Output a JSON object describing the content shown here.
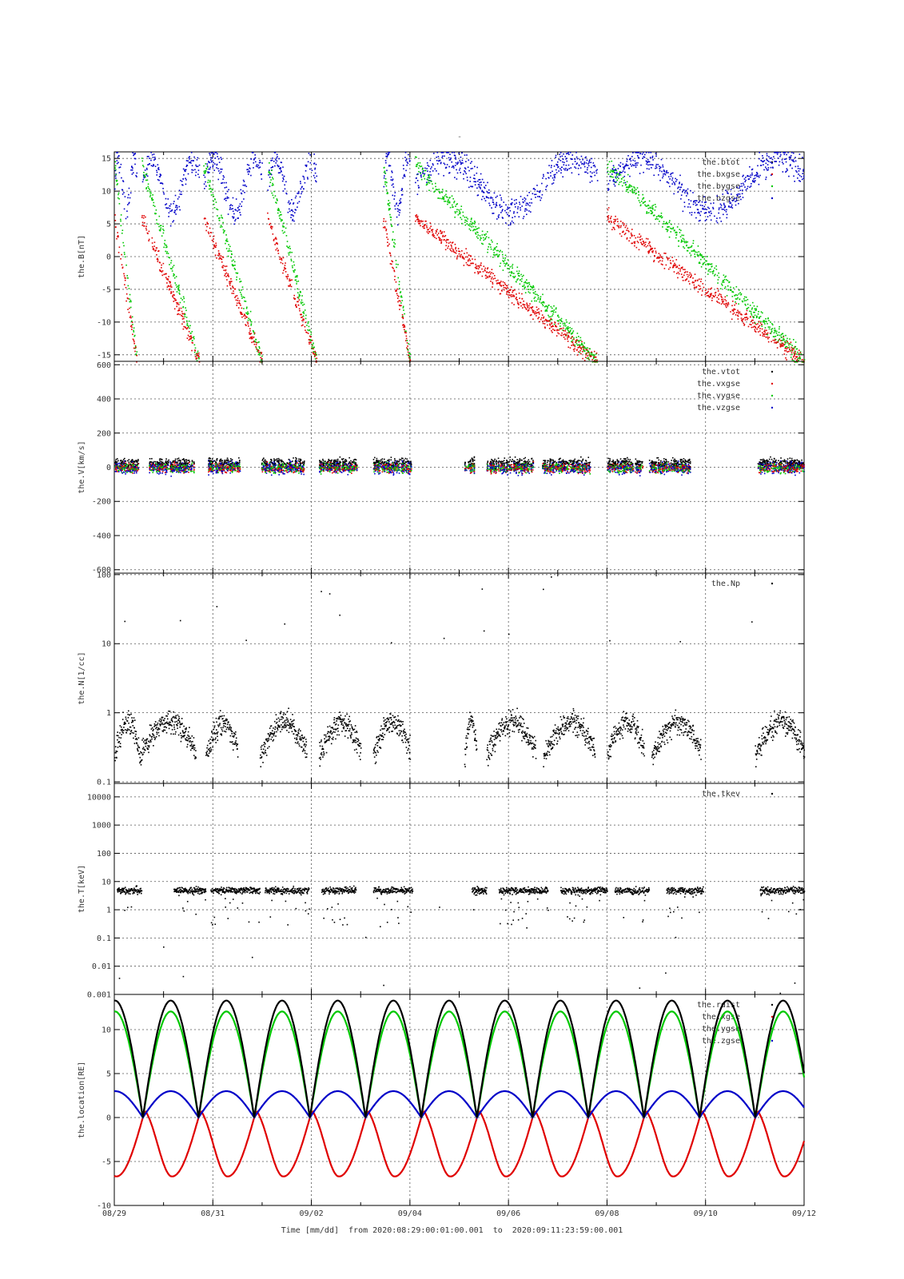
{
  "figure": {
    "title": "-",
    "xlabel_prefix": "Time [mm/dd]",
    "time_from_label": "from",
    "time_from": "2020:08:29:00:01:00.001",
    "time_to_label": "to",
    "time_to": "2020:09:11:23:59:00.001",
    "x_tick_labels": [
      "08/29",
      "08/31",
      "09/02",
      "09/04",
      "09/06",
      "09/08",
      "09/10",
      "09/12"
    ],
    "colors": {
      "black": "#000000",
      "red": "#e00000",
      "green": "#00c800",
      "blue": "#0000c8"
    }
  },
  "chart_data": [
    {
      "type": "scatter",
      "ylabel": "the.B[nT]",
      "ylim": [
        -16,
        16
      ],
      "yticks": [
        15,
        10,
        5,
        0,
        -5,
        -10,
        -15
      ],
      "ytick_labels": [
        "15",
        "10",
        "5",
        "0",
        "-5",
        "-10",
        "-15"
      ],
      "x_days": [
        0,
        14
      ],
      "grid": true,
      "legend": "top-right",
      "series": [
        {
          "name": "the.btot",
          "color": "black"
        },
        {
          "name": "the.bxgse",
          "color": "red"
        },
        {
          "name": "the.bygse",
          "color": "green"
        },
        {
          "name": "the.bzgse",
          "color": "blue"
        }
      ],
      "intervals_days": [
        [
          0,
          0.45
        ],
        [
          0.55,
          1.72
        ],
        [
          1.8,
          3.0
        ],
        [
          3.1,
          4.1
        ],
        [
          5.45,
          6.0
        ],
        [
          6.1,
          9.8
        ],
        [
          10.0,
          14.0
        ]
      ]
    },
    {
      "type": "scatter",
      "ylabel": "the.V[km/s]",
      "ylim": [
        -620,
        620
      ],
      "yticks": [
        600,
        400,
        200,
        0,
        -200,
        -400,
        -600
      ],
      "ytick_labels": [
        "600",
        "400",
        "200",
        "0",
        "-200",
        "-400",
        "-600"
      ],
      "grid": true,
      "legend": "top-right",
      "series": [
        {
          "name": "the.vtot",
          "color": "black"
        },
        {
          "name": "the.vxgse",
          "color": "red"
        },
        {
          "name": "the.vygse",
          "color": "green"
        },
        {
          "name": "the.vzgse",
          "color": "blue"
        }
      ],
      "intervals_days": [
        [
          0,
          0.48
        ],
        [
          0.7,
          1.62
        ],
        [
          1.9,
          2.55
        ],
        [
          2.98,
          3.85
        ],
        [
          4.15,
          4.92
        ],
        [
          5.25,
          6.02
        ],
        [
          7.1,
          7.3
        ],
        [
          7.55,
          8.5
        ],
        [
          8.68,
          9.65
        ],
        [
          10.0,
          10.72
        ],
        [
          10.85,
          11.68
        ],
        [
          13.05,
          14.0
        ]
      ],
      "typical_spread": 40
    },
    {
      "type": "scatter",
      "ylabel": "the.N[1/cc]",
      "scale": "log",
      "ylim": [
        0.095,
        105
      ],
      "yticks": [
        100,
        10,
        1,
        0.1
      ],
      "ytick_labels": [
        "100",
        "10",
        "1",
        "0.1"
      ],
      "grid": true,
      "legend": "top-right",
      "series": [
        {
          "name": "the.Np",
          "color": "black"
        }
      ],
      "intervals_days": [
        [
          0,
          0.5
        ],
        [
          0.5,
          1.65
        ],
        [
          1.85,
          2.5
        ],
        [
          2.95,
          3.9
        ],
        [
          4.15,
          5.0
        ],
        [
          5.25,
          6.0
        ],
        [
          7.1,
          7.35
        ],
        [
          7.55,
          8.55
        ],
        [
          8.7,
          9.75
        ],
        [
          10.0,
          10.75
        ],
        [
          10.9,
          11.9
        ],
        [
          13.0,
          14.0
        ]
      ],
      "typical_value": 0.3
    },
    {
      "type": "scatter",
      "ylabel": "the.T[keV]",
      "scale": "log",
      "ylim": [
        0.001,
        30000
      ],
      "yticks": [
        10000,
        1000,
        100,
        10,
        1,
        0.1,
        0.01,
        0.001
      ],
      "ytick_labels": [
        "10000",
        "1000",
        "100",
        "10",
        "1",
        "0.1",
        "0.01",
        "0.001"
      ],
      "grid": true,
      "legend": "top-right",
      "series": [
        {
          "name": "the.tkev",
          "color": "black"
        }
      ],
      "intervals_days": [
        [
          0.05,
          0.55
        ],
        [
          1.2,
          1.85
        ],
        [
          1.95,
          2.95
        ],
        [
          3.05,
          3.95
        ],
        [
          4.2,
          4.9
        ],
        [
          5.25,
          6.05
        ],
        [
          7.25,
          7.55
        ],
        [
          7.8,
          8.8
        ],
        [
          9.05,
          10.0
        ],
        [
          10.15,
          10.85
        ],
        [
          11.2,
          11.95
        ],
        [
          13.1,
          14.0
        ]
      ],
      "typical_value": 5
    },
    {
      "type": "line",
      "ylabel": "the.location[RE]",
      "ylim": [
        -10,
        14
      ],
      "yticks": [
        10,
        5,
        0,
        -5,
        -10
      ],
      "ytick_labels": [
        "10",
        "5",
        "0",
        "-5",
        "-10"
      ],
      "grid": true,
      "legend": "top-right",
      "series": [
        {
          "name": "the.rdist",
          "color": "black",
          "peak": 13.3
        },
        {
          "name": "the.xgse",
          "color": "red",
          "min": -6.7
        },
        {
          "name": "the.ygse",
          "color": "green",
          "peak": 12.3
        },
        {
          "name": "the.zgse",
          "color": "blue",
          "peak": 3.0
        }
      ],
      "orbit_period_days": 1.13,
      "perigee_times_days": [
        0.58,
        1.71,
        2.84,
        3.97,
        5.1,
        6.23,
        7.36,
        8.49,
        9.62,
        10.75,
        11.88,
        13.01
      ]
    }
  ]
}
